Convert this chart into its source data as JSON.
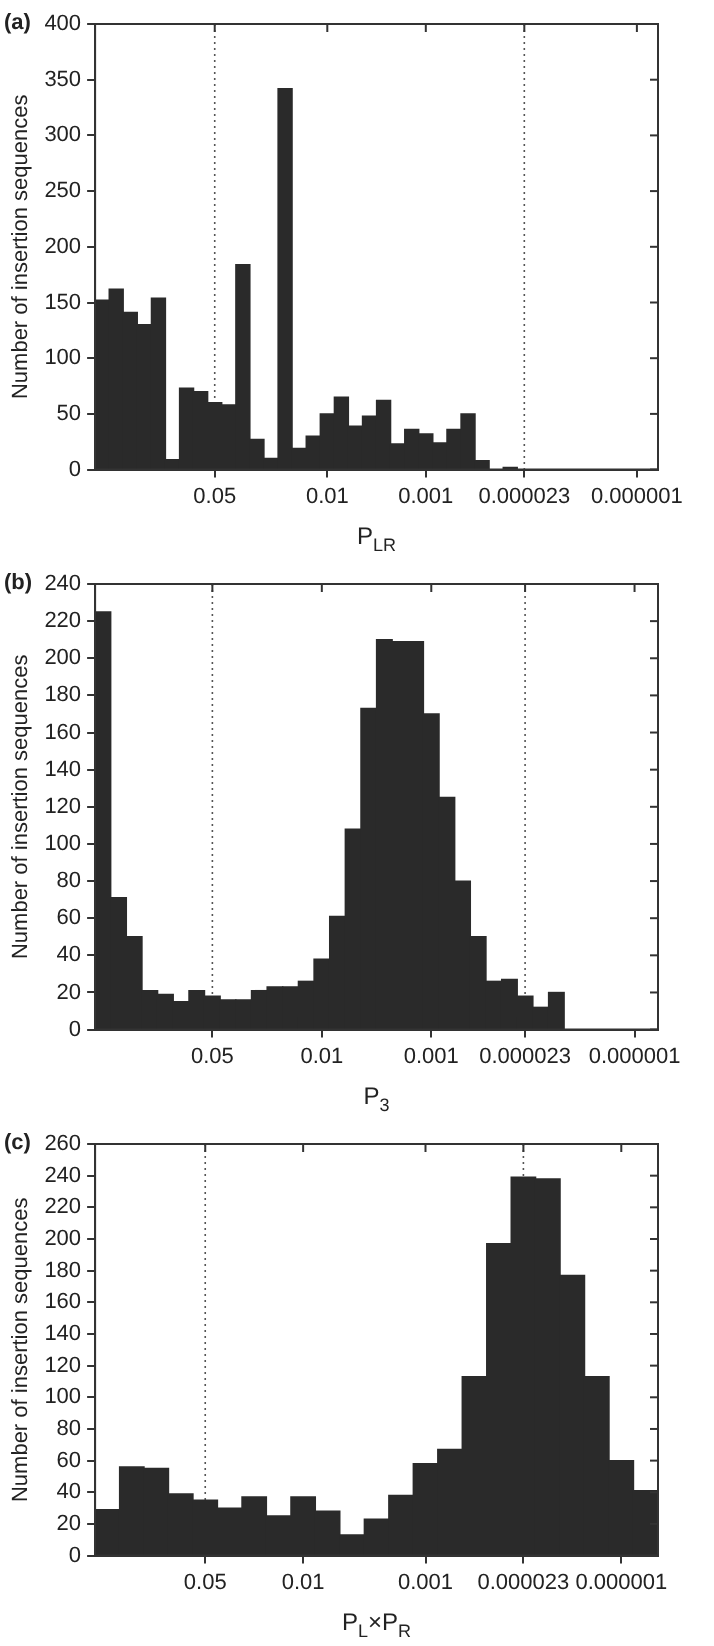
{
  "chart_data": [
    {
      "type": "bar",
      "title": "(a)",
      "xlabel": "P$_{LR}$",
      "ylabel": "Number of insertion sequences",
      "color": "#2a2a2a",
      "categories": [
        null,
        null,
        null,
        null,
        null,
        null,
        null,
        null,
        "0.05",
        null,
        null,
        null,
        null,
        null,
        null,
        null,
        "0.01",
        null,
        null,
        null,
        null,
        null,
        null,
        "0.001",
        null,
        null,
        null,
        null,
        null,
        null,
        "0.000023",
        null,
        null,
        null,
        null,
        null,
        null,
        null,
        "0.000001",
        null
      ],
      "values": [
        152,
        162,
        141,
        130,
        154,
        9,
        73,
        70,
        60,
        58,
        184,
        27,
        10,
        342,
        19,
        30,
        50,
        65,
        39,
        48,
        62,
        23,
        36,
        32,
        24,
        36,
        50,
        8,
        0,
        2,
        null,
        null,
        null,
        null,
        null,
        null,
        null,
        null,
        null,
        null
      ],
      "ylim": [
        0,
        400
      ],
      "yticks": [
        0,
        50,
        100,
        150,
        200,
        250,
        300,
        350,
        400
      ],
      "grid": false,
      "ref_lines": [
        {
          "axis": "x",
          "value": "0.05",
          "line_style": "dotted",
          "color": "#555555"
        },
        {
          "axis": "x",
          "value": "0.000023",
          "line_style": "dotted",
          "color": "#555555"
        }
      ]
    },
    {
      "type": "bar",
      "title": "(b)",
      "xlabel": "P$_{3}$",
      "ylabel": "Number of insertion sequences",
      "color": "#2a2a2a",
      "categories": [
        null,
        null,
        null,
        null,
        null,
        null,
        null,
        "0.05",
        null,
        null,
        null,
        null,
        null,
        null,
        "0.01",
        null,
        null,
        null,
        null,
        null,
        null,
        "0.001",
        null,
        null,
        null,
        null,
        null,
        "0.000023",
        null,
        null,
        null,
        null,
        null,
        null,
        "0.000001",
        null
      ],
      "values": [
        225,
        71,
        50,
        21,
        19,
        15,
        21,
        18,
        16,
        16,
        21,
        23,
        23,
        26,
        38,
        61,
        108,
        173,
        210,
        209,
        209,
        170,
        125,
        80,
        50,
        26,
        27,
        18,
        12,
        20,
        null,
        null,
        null,
        null,
        null,
        null
      ],
      "ylim": [
        0,
        240
      ],
      "yticks": [
        0,
        20,
        40,
        60,
        80,
        100,
        120,
        140,
        160,
        180,
        200,
        220,
        240
      ],
      "grid": false,
      "ref_lines": [
        {
          "axis": "x",
          "value": "0.05",
          "line_style": "dotted",
          "color": "#555555"
        },
        {
          "axis": "x",
          "value": "0.000023",
          "line_style": "dotted",
          "color": "#555555"
        }
      ]
    },
    {
      "type": "bar",
      "title": "(c)",
      "xlabel": "P$_{L}$×P$_{R}$",
      "ylabel": "Number of insertion sequences",
      "color": "#2a2a2a",
      "categories": [
        null,
        null,
        null,
        null,
        "0.05",
        null,
        null,
        null,
        "0.01",
        null,
        null,
        null,
        null,
        "0.001",
        null,
        null,
        null,
        "0.000023",
        null,
        null,
        null,
        "0.000001",
        null
      ],
      "values": [
        29,
        56,
        55,
        39,
        35,
        30,
        37,
        25,
        37,
        28,
        13,
        23,
        38,
        58,
        67,
        113,
        197,
        239,
        238,
        177,
        113,
        60,
        41
      ],
      "ylim": [
        0,
        260
      ],
      "yticks": [
        0,
        20,
        40,
        60,
        80,
        100,
        120,
        140,
        160,
        180,
        200,
        220,
        240,
        260
      ],
      "grid": false,
      "ref_lines": [
        {
          "axis": "x",
          "value": "0.05",
          "line_style": "dotted",
          "color": "#555555"
        },
        {
          "axis": "x",
          "value": "0.000023",
          "line_style": "dotted",
          "color": "#555555"
        }
      ]
    }
  ]
}
